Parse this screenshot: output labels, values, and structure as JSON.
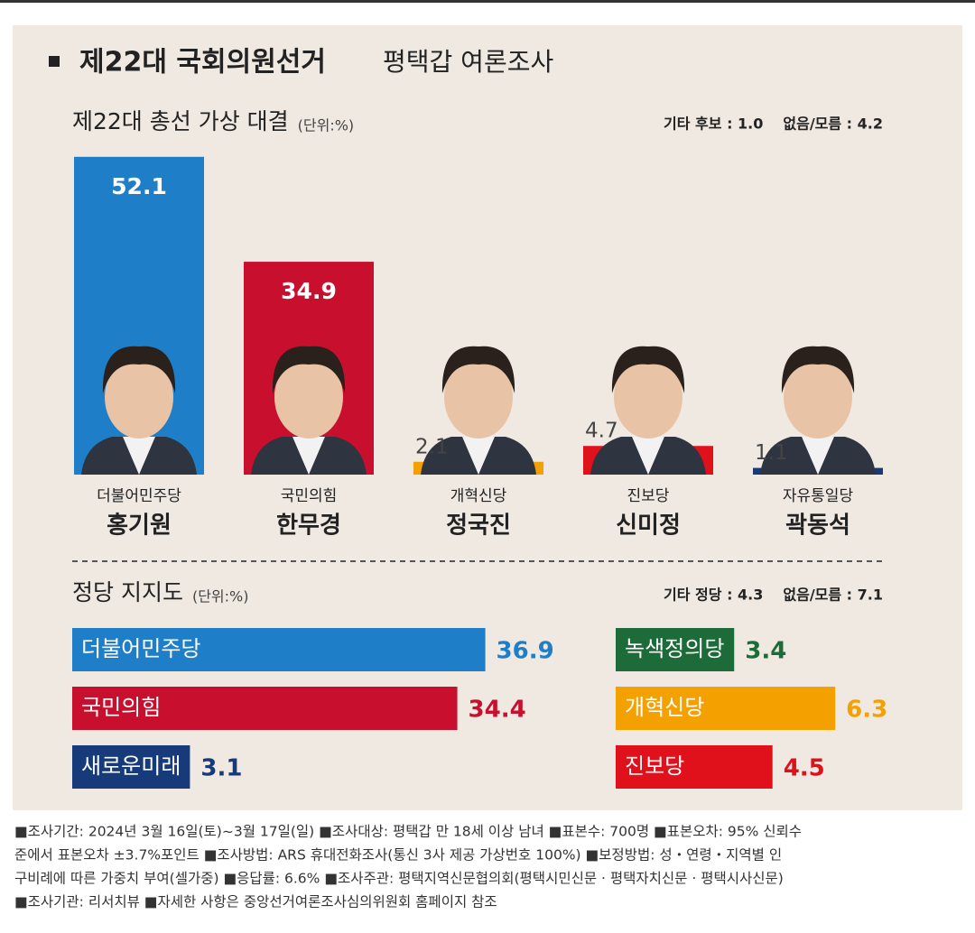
{
  "header": {
    "title_bold": "제22대 국회의원선거",
    "title_rest": "평택갑 여론조사"
  },
  "chart_data": [
    {
      "type": "bar",
      "title": "제22대 총선 가상 대결",
      "unit": "(단위:%)",
      "notes": [
        "기타 후보 : 1.0",
        "없음/모름 : 4.2"
      ],
      "categories": [
        "홍기원",
        "한무경",
        "정국진",
        "신미정",
        "곽동석"
      ],
      "parties": [
        "더불어민주당",
        "국민의힘",
        "개혁신당",
        "진보당",
        "자유통일당"
      ],
      "values": [
        52.1,
        34.9,
        2.1,
        4.7,
        1.1
      ],
      "colors": [
        "#1f7ec8",
        "#c8102e",
        "#f4a000",
        "#e0111b",
        "#173a7a"
      ]
    },
    {
      "type": "hbar",
      "title": "정당 지지도",
      "unit": "(단위:%)",
      "notes": [
        "기타 정당 : 4.3",
        "없음/모름 : 7.1"
      ],
      "categories": [
        "더불어민주당",
        "국민의힘",
        "새로운미래",
        "녹색정의당",
        "개혁신당",
        "진보당"
      ],
      "values": [
        36.9,
        34.4,
        3.1,
        3.4,
        6.3,
        4.5
      ],
      "colors": [
        "#1f7ec8",
        "#c8102e",
        "#173a7a",
        "#1e6b3a",
        "#f4a000",
        "#e0111b"
      ]
    }
  ],
  "footnotes": [
    "■조사기간: 2024년 3월 16일(토)~3월 17일(일) ■조사대상: 평택갑 만 18세 이상 남녀 ■표본수: 700명 ■표본오차: 95% 신뢰수",
    "준에서 표본오차 ±3.7%포인트 ■조사방법: ARS 휴대전화조사(통신 3사 제공 가상번호 100%) ■보정방법: 성・연령・지역별 인",
    "구비례에 따른 가중치 부여(셀가중) ■응답률: 6.6% ■조사주관: 평택지역신문협의회(평택시민신문 · 평택자치신문 · 평택시사신문)",
    "■조사기관: 리서치뷰 ■자세한 사항은 중앙선거여론조사심의위원회 홈페이지 참조"
  ]
}
